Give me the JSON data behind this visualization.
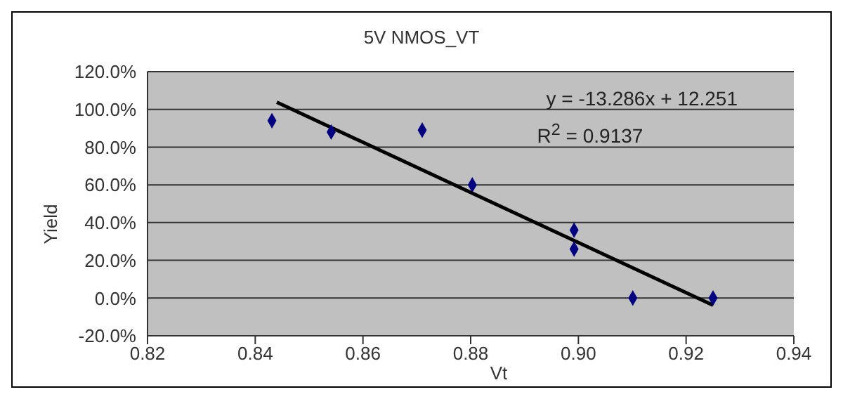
{
  "chart_data": {
    "type": "scatter",
    "title": "5V NMOS_VT",
    "xlabel": "Vt",
    "ylabel": "Yield",
    "series": [
      {
        "color": "#000080",
        "marker": "diamond",
        "x": [
          0.8431,
          0.8541,
          0.871,
          0.8803,
          0.8992,
          0.8992,
          0.9101,
          0.925
        ],
        "values": [
          0.94,
          0.88,
          0.89,
          0.6,
          0.36,
          0.26,
          0,
          0
        ]
      },
      {
        "type": "line",
        "color": "#000000",
        "marker": "none",
        "x": [
          0.844,
          0.925
        ],
        "values": [
          1.038,
          -0.038
        ]
      }
    ],
    "xlim": [
      0.82,
      0.94
    ],
    "xticks": [
      0.82,
      0.84,
      0.86,
      0.88,
      {
        "value": 0.9,
        "label": "0.90"
      },
      0.92,
      0.94
    ],
    "ylim": [
      -0.2,
      1.2
    ],
    "yticks": [
      {
        "value": -0.2,
        "label": "-20.0%"
      },
      {
        "value": 0,
        "label": "0.0%"
      },
      {
        "value": 0.2,
        "label": "20.0%"
      },
      {
        "value": 0.4,
        "label": "40.0%"
      },
      {
        "value": 0.6,
        "label": "60.0%"
      },
      {
        "value": 0.8,
        "label": "80.0%"
      },
      {
        "value": 1,
        "label": "100.0%"
      },
      {
        "value": 1.2,
        "label": "120.0%"
      }
    ],
    "grid": "y",
    "legend": false,
    "annotations": [
      "y = -13.286x + 12.251",
      "R$^{2}$ = 0.9137"
    ]
  }
}
